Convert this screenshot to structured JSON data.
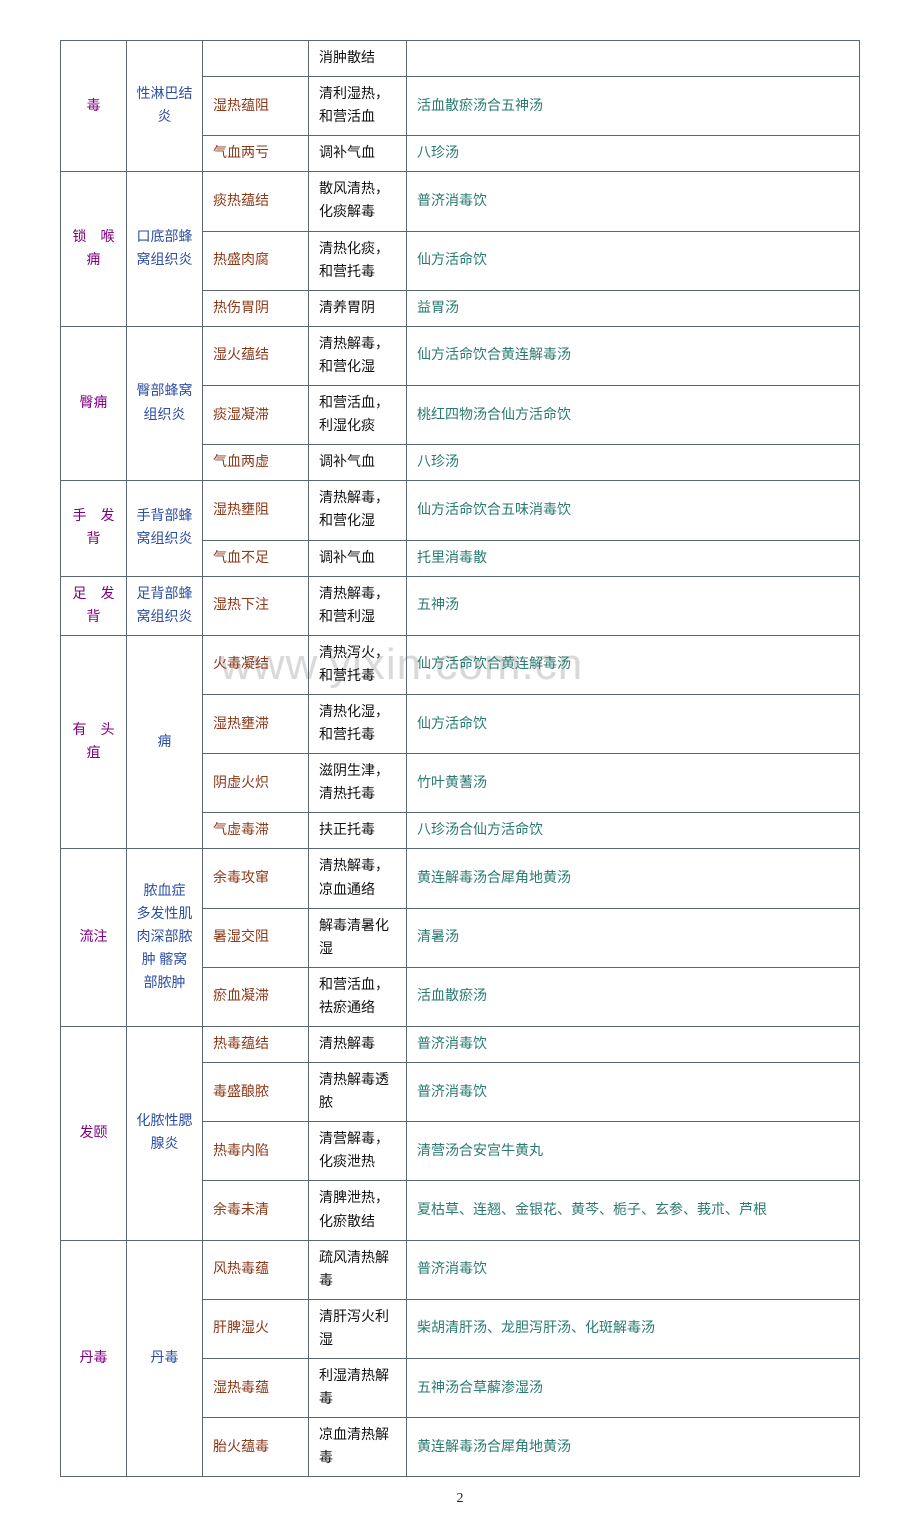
{
  "watermark": "www.yixin.com.cn",
  "pageNumber": "2",
  "rows": [
    {
      "c1": "毒",
      "c1rows": 3,
      "c2": "性淋巴结炎",
      "c2rows": 3,
      "c3": "",
      "c4": "消肿散结",
      "c5": ""
    },
    {
      "c3": "湿热蕴阻",
      "c4": "清利湿热，和营活血",
      "c5": "活血散瘀汤合五神汤"
    },
    {
      "c3": "气血两亏",
      "c4": "调补气血",
      "c5": "八珍汤"
    },
    {
      "c1": "锁　喉痈",
      "c1rows": 3,
      "c2": "口底部蜂窝组织炎",
      "c2rows": 3,
      "c3": "痰热蕴结",
      "c4": "散风清热，化痰解毒",
      "c5": "普济消毒饮"
    },
    {
      "c3": "热盛肉腐",
      "c4": "清热化痰，和营托毒",
      "c5": "仙方活命饮"
    },
    {
      "c3": "热伤胃阴",
      "c4": "清养胃阴",
      "c5": "益胃汤"
    },
    {
      "c1": "臀痈",
      "c1rows": 3,
      "c2": "臀部蜂窝组织炎",
      "c2rows": 3,
      "c3": "湿火蕴结",
      "c4": "清热解毒，和营化湿",
      "c5": "仙方活命饮合黄连解毒汤"
    },
    {
      "c3": "痰湿凝滞",
      "c4": "和营活血，利湿化痰",
      "c5": "桃红四物汤合仙方活命饮"
    },
    {
      "c3": "气血两虚",
      "c4": "调补气血",
      "c5": "八珍汤"
    },
    {
      "c1": "手　发背",
      "c1rows": 2,
      "c2": "手背部蜂窝组织炎",
      "c2rows": 2,
      "c3": "湿热壅阻",
      "c4": "清热解毒，和营化湿",
      "c5": "仙方活命饮合五味消毒饮"
    },
    {
      "c3": "气血不足",
      "c4": "调补气血",
      "c5": "托里消毒散"
    },
    {
      "c1": "足　发背",
      "c1rows": 1,
      "c2": "足背部蜂窝组织炎",
      "c2rows": 1,
      "c3": "湿热下注",
      "c4": "清热解毒，和营利湿",
      "c5": "五神汤"
    },
    {
      "c1": "有　头疽",
      "c1rows": 4,
      "c2": "痈",
      "c2rows": 4,
      "c3": "火毒凝结",
      "c4": "清热泻火，和营托毒",
      "c5": "仙方活命饮合黄连解毒汤"
    },
    {
      "c3": "湿热壅滞",
      "c4": "清热化湿，和营托毒",
      "c5": "仙方活命饮"
    },
    {
      "c3": "阴虚火炽",
      "c4": "滋阴生津，清热托毒",
      "c5": "竹叶黄蓍汤"
    },
    {
      "c3": "气虚毒滞",
      "c4": "扶正托毒",
      "c5": "八珍汤合仙方活命饮"
    },
    {
      "c1": "流注",
      "c1rows": 3,
      "c2": "脓血症 多发性肌肉深部脓肿 髂窝部脓肿",
      "c2rows": 3,
      "c3": "余毒攻窜",
      "c4": "清热解毒，凉血通络",
      "c5": "黄连解毒汤合犀角地黄汤"
    },
    {
      "c3": "暑湿交阻",
      "c4": "解毒清暑化湿",
      "c5": "清暑汤"
    },
    {
      "c3": "瘀血凝滞",
      "c4": "和营活血，祛瘀通络",
      "c5": "活血散瘀汤"
    },
    {
      "c1": "发颐",
      "c1rows": 4,
      "c2": "化脓性腮腺炎",
      "c2rows": 4,
      "c3": "热毒蕴结",
      "c4": "清热解毒",
      "c5": "普济消毒饮"
    },
    {
      "c3": "毒盛酿脓",
      "c4": "清热解毒透脓",
      "c5": "普济消毒饮"
    },
    {
      "c3": "热毒内陷",
      "c4": "清营解毒，化痰泄热",
      "c5": "清营汤合安宫牛黄丸"
    },
    {
      "c3": "余毒未清",
      "c4": "清脾泄热，化瘀散结",
      "c5": "夏枯草、连翘、金银花、黄芩、栀子、玄参、莪朮、芦根"
    },
    {
      "c1": "丹毒",
      "c1rows": 4,
      "c2": "丹毒",
      "c2rows": 4,
      "c3": "风热毒蕴",
      "c4": "疏风清热解毒",
      "c5": "普济消毒饮"
    },
    {
      "c3": "肝脾湿火",
      "c4": "清肝泻火利湿",
      "c5": "柴胡清肝汤、龙胆泻肝汤、化斑解毒汤"
    },
    {
      "c3": "湿热毒蕴",
      "c4": "利湿清热解毒",
      "c5": "五神汤合草薢渗湿汤"
    },
    {
      "c3": "胎火蕴毒",
      "c4": "凉血清热解毒",
      "c5": "黄连解毒汤合犀角地黄汤"
    }
  ]
}
